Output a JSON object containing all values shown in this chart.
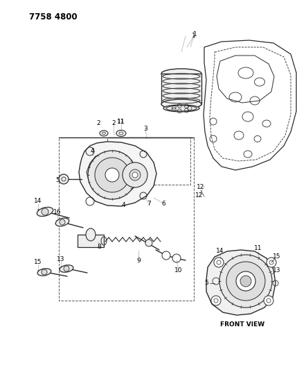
{
  "title_code": "7758 4800",
  "background_color": "#ffffff",
  "line_color": "#2a2a2a",
  "text_color": "#000000",
  "fig_width": 4.29,
  "fig_height": 5.33,
  "dpi": 100,
  "front_view_label": "FRONT VIEW"
}
